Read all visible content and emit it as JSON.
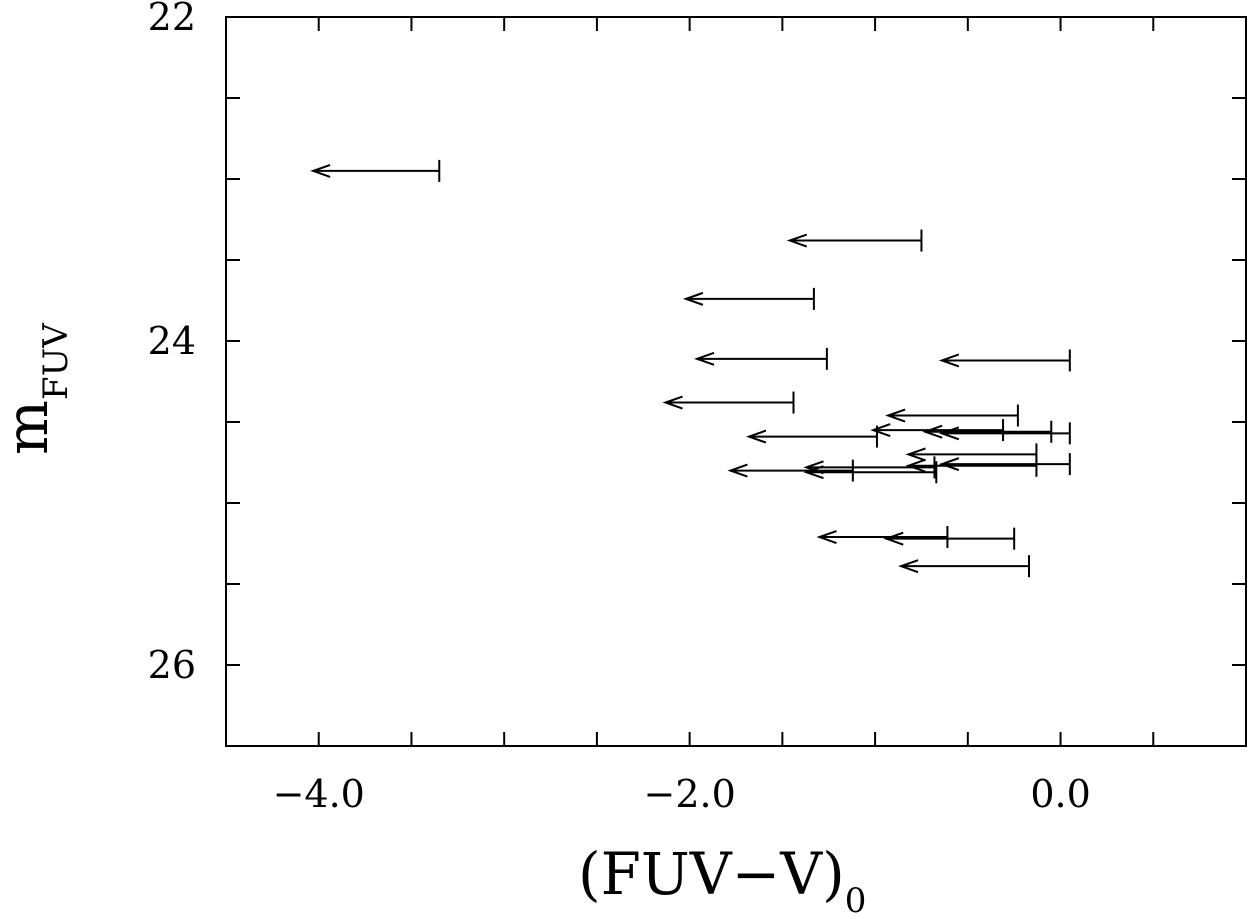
{
  "chart_data": {
    "type": "scatter",
    "marker": "upper-limit-arrow",
    "xlabel": "(FUV−V)",
    "xlabel_subscript": "0",
    "ylabel": "m",
    "ylabel_subscript": "FUV",
    "xlim": [
      -4.5,
      1.0
    ],
    "ylim": [
      22.0,
      26.5
    ],
    "y_inverted": true,
    "x_ticks": [
      {
        "value": -4.0,
        "label": "−4.0"
      },
      {
        "value": -2.0,
        "label": "−2.0"
      },
      {
        "value": 0.0,
        "label": "0.0"
      }
    ],
    "y_ticks": [
      {
        "value": 22,
        "label": "22"
      },
      {
        "value": 24,
        "label": "24"
      },
      {
        "value": 26,
        "label": "26"
      }
    ],
    "x_minor_ticks": [
      -4.0,
      -3.5,
      -3.0,
      -2.5,
      -2.0,
      -1.5,
      -1.0,
      -0.5,
      0.0,
      0.5
    ],
    "y_minor_ticks": [
      22.5,
      23.0,
      23.5,
      24.0,
      24.5,
      25.0,
      25.5,
      26.0
    ],
    "points": [
      {
        "x": -3.35,
        "y": 22.95,
        "x_arrow_end": -4.03
      },
      {
        "x": -0.75,
        "y": 23.38,
        "x_arrow_end": -1.46
      },
      {
        "x": -1.33,
        "y": 23.74,
        "x_arrow_end": -2.02
      },
      {
        "x": -1.26,
        "y": 24.11,
        "x_arrow_end": -1.96
      },
      {
        "x": 0.05,
        "y": 24.12,
        "x_arrow_end": -0.64
      },
      {
        "x": -1.44,
        "y": 24.38,
        "x_arrow_end": -2.13
      },
      {
        "x": -0.23,
        "y": 24.46,
        "x_arrow_end": -0.93
      },
      {
        "x": -0.31,
        "y": 24.55,
        "x_arrow_end": -1.01
      },
      {
        "x": -0.05,
        "y": 24.56,
        "x_arrow_end": -0.73
      },
      {
        "x": 0.05,
        "y": 24.57,
        "x_arrow_end": -0.64
      },
      {
        "x": -0.99,
        "y": 24.59,
        "x_arrow_end": -1.68
      },
      {
        "x": -0.13,
        "y": 24.7,
        "x_arrow_end": -0.82
      },
      {
        "x": 0.05,
        "y": 24.76,
        "x_arrow_end": -0.64
      },
      {
        "x": -0.13,
        "y": 24.77,
        "x_arrow_end": -0.82
      },
      {
        "x": -0.68,
        "y": 24.78,
        "x_arrow_end": -1.37
      },
      {
        "x": -1.12,
        "y": 24.8,
        "x_arrow_end": -1.78
      },
      {
        "x": -0.67,
        "y": 24.81,
        "x_arrow_end": -1.37
      },
      {
        "x": -0.61,
        "y": 25.21,
        "x_arrow_end": -1.3
      },
      {
        "x": -0.25,
        "y": 25.22,
        "x_arrow_end": -0.94
      },
      {
        "x": -0.17,
        "y": 25.39,
        "x_arrow_end": -0.86
      }
    ]
  }
}
